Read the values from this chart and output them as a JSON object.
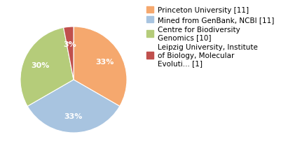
{
  "labels": [
    "Princeton University [11]",
    "Mined from GenBank, NCBI [11]",
    "Centre for Biodiversity\nGenomics [10]",
    "Leipzig University, Institute\nof Biology, Molecular\nEvoluti... [1]"
  ],
  "values": [
    11,
    11,
    10,
    1
  ],
  "colors": [
    "#F5A86E",
    "#A8C4E0",
    "#B5CC7A",
    "#C0504D"
  ],
  "startangle": 90,
  "background_color": "#ffffff",
  "autopct_fontsize": 8,
  "legend_fontsize": 7.5
}
